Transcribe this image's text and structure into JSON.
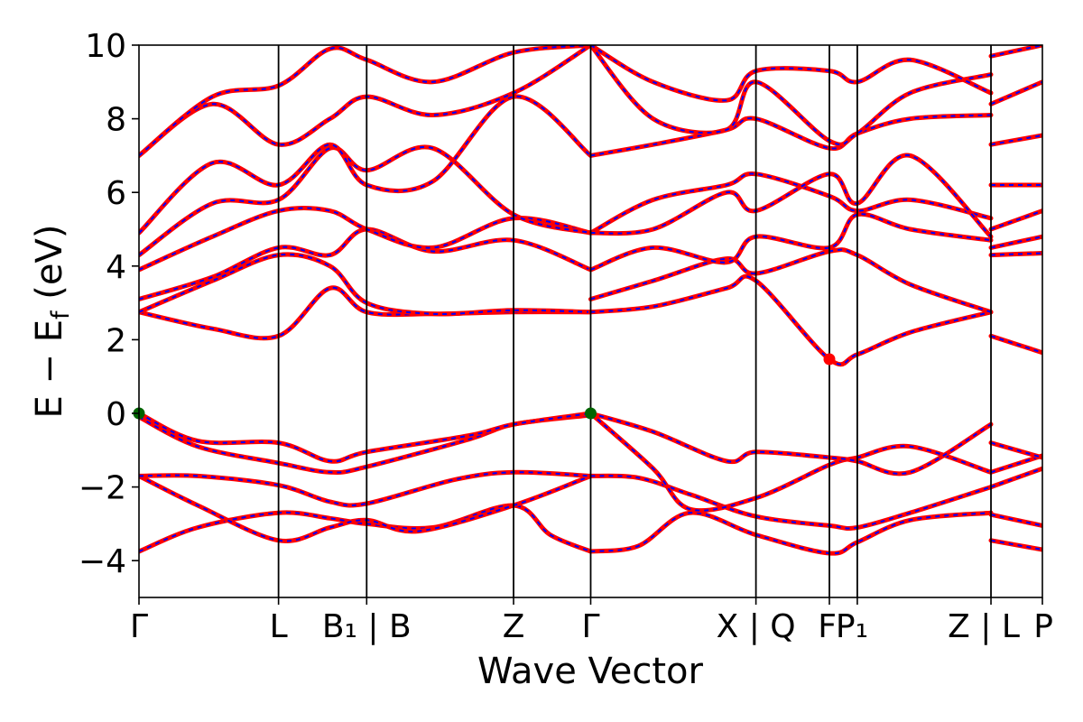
{
  "chart_data": {
    "type": "line",
    "xlabel": "Wave Vector",
    "ylabel": "E − E_f (eV)",
    "ylabel_main": "E  −  E",
    "ylabel_sub": "f",
    "ylabel_tail": " (eV)",
    "ylim": [
      -5,
      10
    ],
    "xlim": [
      0,
      12.3
    ],
    "grid": false,
    "legend": "none",
    "yticks": [
      -4,
      -2,
      0,
      2,
      4,
      6,
      8,
      10
    ],
    "ytick_labels": [
      "−4",
      "−2",
      "0",
      "2",
      "4",
      "6",
      "8",
      "10"
    ],
    "kpoints": [
      {
        "x": 0.0,
        "label": "Γ"
      },
      {
        "x": 1.9,
        "label": "L"
      },
      {
        "x": 3.1,
        "label": "B₁ | B"
      },
      {
        "x": 5.1,
        "label": "Z"
      },
      {
        "x": 6.15,
        "label": "Γ"
      },
      {
        "x": 8.4,
        "label": "X | Q"
      },
      {
        "x": 9.4,
        "label": "F"
      },
      {
        "x": 9.78,
        "label": "P₁"
      },
      {
        "x": 11.6,
        "label": "Z | L"
      },
      {
        "x": 12.3,
        "label": "P"
      }
    ],
    "discontinuity_x": 11.6,
    "vbm_points": [
      {
        "x": 0.0,
        "y": 0.0
      },
      {
        "x": 6.15,
        "y": 0.0
      }
    ],
    "cbm_points": [
      {
        "x": 9.4,
        "y": 1.47
      }
    ],
    "colors": {
      "band_solid": "#ff0000",
      "band_dashed": "#0000ff",
      "vbm": "#006400",
      "cbm": "#ff0000",
      "axis": "#000000"
    },
    "series": [
      {
        "x": [
          0,
          0.8,
          1.9,
          2.6,
          3.1,
          4.0,
          5.1,
          5.6,
          6.15
        ],
        "y": [
          -3.75,
          -3.1,
          -2.7,
          -2.85,
          -3.0,
          -3.1,
          -2.5,
          -3.3,
          -3.75
        ]
      },
      {
        "x": [
          0,
          0.8,
          1.9,
          2.6,
          3.1,
          3.8,
          5.1,
          6.15
        ],
        "y": [
          -1.7,
          -2.5,
          -3.45,
          -3.1,
          -2.9,
          -3.2,
          -2.5,
          -1.7
        ]
      },
      {
        "x": [
          0,
          0.8,
          1.9,
          2.6,
          3.1,
          4.3,
          5.1,
          6.15
        ],
        "y": [
          -1.7,
          -1.7,
          -1.95,
          -2.4,
          -2.45,
          -1.8,
          -1.6,
          -1.7
        ]
      },
      {
        "x": [
          0,
          0.8,
          1.9,
          2.6,
          3.1,
          4.5,
          5.1,
          6.15
        ],
        "y": [
          -0.1,
          -0.9,
          -1.35,
          -1.6,
          -1.45,
          -0.7,
          -0.3,
          -0.05
        ]
      },
      {
        "x": [
          0,
          0.8,
          1.9,
          2.6,
          3.1,
          4.5,
          5.1,
          6.15
        ],
        "y": [
          0.0,
          -0.75,
          -0.8,
          -1.3,
          -1.05,
          -0.6,
          -0.3,
          0.0
        ]
      },
      {
        "x": [
          6.15,
          6.8,
          7.5,
          8.4,
          9.4,
          9.78,
          10.5,
          11.6
        ],
        "y": [
          -3.75,
          -3.6,
          -2.7,
          -3.3,
          -3.8,
          -3.5,
          -2.9,
          -2.7
        ]
      },
      {
        "x": [
          6.15,
          6.8,
          7.5,
          8.4,
          9.4,
          9.78,
          10.5,
          11.6
        ],
        "y": [
          -1.7,
          -1.75,
          -2.2,
          -2.8,
          -3.05,
          -3.1,
          -2.7,
          -2.0
        ]
      },
      {
        "x": [
          6.15,
          7.0,
          7.5,
          8.4,
          9.4,
          9.78,
          10.5,
          11.6
        ],
        "y": [
          0.0,
          -1.5,
          -2.6,
          -2.3,
          -1.4,
          -1.2,
          -0.9,
          -1.6
        ]
      },
      {
        "x": [
          6.15,
          7.0,
          8.0,
          8.4,
          9.4,
          9.78,
          10.5,
          11.6
        ],
        "y": [
          0.0,
          -0.5,
          -1.3,
          -1.05,
          -1.2,
          -1.3,
          -1.6,
          -0.3
        ]
      },
      {
        "x": [
          0,
          1.0,
          1.9,
          2.6,
          3.1,
          4.0,
          5.1,
          6.15
        ],
        "y": [
          2.75,
          2.3,
          2.1,
          3.4,
          2.75,
          2.7,
          2.75,
          2.75
        ]
      },
      {
        "x": [
          0,
          1.0,
          1.9,
          2.6,
          3.1,
          4.0,
          5.1,
          6.15
        ],
        "y": [
          2.75,
          3.6,
          4.3,
          4.0,
          3.0,
          2.7,
          2.8,
          2.75
        ]
      },
      {
        "x": [
          0,
          1.0,
          1.9,
          2.6,
          3.1,
          4.0,
          5.1,
          6.15
        ],
        "y": [
          3.1,
          3.7,
          4.5,
          4.3,
          5.0,
          4.4,
          4.7,
          3.9
        ]
      },
      {
        "x": [
          0,
          1.0,
          1.9,
          2.6,
          3.1,
          4.0,
          5.1,
          6.15
        ],
        "y": [
          3.9,
          4.8,
          5.5,
          5.5,
          5.0,
          4.5,
          5.3,
          4.9
        ]
      },
      {
        "x": [
          0,
          1.0,
          1.9,
          2.6,
          3.1,
          4.0,
          5.1,
          6.15
        ],
        "y": [
          4.3,
          5.7,
          5.8,
          7.2,
          6.6,
          7.2,
          5.4,
          4.9
        ]
      },
      {
        "x": [
          0,
          1.0,
          1.9,
          2.6,
          3.1,
          4.0,
          5.1,
          6.15
        ],
        "y": [
          4.9,
          6.8,
          6.2,
          7.3,
          6.2,
          6.3,
          8.6,
          7.0
        ]
      },
      {
        "x": [
          0,
          1.0,
          1.9,
          2.6,
          3.1,
          4.0,
          5.1,
          6.15
        ],
        "y": [
          7.0,
          8.4,
          7.3,
          8.0,
          8.6,
          8.1,
          8.7,
          10.0
        ]
      },
      {
        "x": [
          0,
          1.0,
          1.9,
          2.6,
          3.1,
          4.0,
          5.1,
          6.15
        ],
        "y": [
          7.0,
          8.6,
          8.9,
          9.9,
          9.6,
          9.0,
          9.8,
          10.0
        ]
      },
      {
        "x": [
          6.15,
          7.0,
          8.0,
          8.4,
          9.4,
          9.78,
          10.5,
          11.6
        ],
        "y": [
          2.75,
          2.9,
          3.4,
          3.6,
          1.47,
          1.6,
          2.2,
          2.75
        ]
      },
      {
        "x": [
          6.15,
          7.0,
          8.0,
          8.4,
          9.4,
          9.78,
          10.5,
          11.6
        ],
        "y": [
          3.1,
          3.6,
          4.2,
          3.8,
          4.4,
          4.3,
          3.5,
          2.75
        ]
      },
      {
        "x": [
          6.15,
          7.0,
          8.0,
          8.4,
          9.4,
          9.78,
          10.5,
          11.6
        ],
        "y": [
          3.9,
          4.5,
          4.1,
          4.8,
          4.5,
          5.4,
          5.0,
          4.7
        ]
      },
      {
        "x": [
          6.15,
          7.0,
          8.0,
          8.4,
          9.4,
          9.78,
          10.5,
          11.6
        ],
        "y": [
          4.9,
          5.8,
          6.2,
          6.5,
          5.9,
          5.5,
          5.8,
          5.3
        ]
      },
      {
        "x": [
          6.15,
          7.0,
          8.0,
          8.4,
          9.4,
          9.78,
          10.5,
          11.6
        ],
        "y": [
          4.9,
          5.0,
          6.0,
          5.5,
          6.5,
          5.7,
          7.0,
          4.8
        ]
      },
      {
        "x": [
          6.15,
          7.0,
          8.0,
          8.4,
          9.4,
          9.78,
          10.5,
          11.6
        ],
        "y": [
          7.0,
          7.3,
          7.7,
          8.0,
          7.2,
          7.6,
          8.0,
          8.1
        ]
      },
      {
        "x": [
          6.15,
          7.0,
          8.0,
          8.4,
          9.4,
          9.78,
          10.5,
          11.6
        ],
        "y": [
          10.0,
          8.0,
          7.7,
          9.0,
          7.4,
          7.6,
          8.7,
          9.2
        ]
      },
      {
        "x": [
          6.15,
          7.0,
          8.0,
          8.4,
          9.4,
          9.78,
          10.5,
          11.6
        ],
        "y": [
          10.0,
          9.0,
          8.5,
          9.3,
          9.3,
          9.0,
          9.6,
          8.7
        ]
      },
      {
        "x": [
          11.6,
          12.3
        ],
        "y": [
          -3.45,
          -3.7
        ]
      },
      {
        "x": [
          11.6,
          12.3
        ],
        "y": [
          -2.75,
          -3.05
        ]
      },
      {
        "x": [
          11.6,
          12.3
        ],
        "y": [
          -2.0,
          -1.5
        ]
      },
      {
        "x": [
          11.6,
          12.3
        ],
        "y": [
          -1.6,
          -1.15
        ]
      },
      {
        "x": [
          11.6,
          12.3
        ],
        "y": [
          -0.8,
          -1.2
        ]
      },
      {
        "x": [
          11.6,
          12.3
        ],
        "y": [
          2.1,
          1.65
        ]
      },
      {
        "x": [
          11.6,
          12.3
        ],
        "y": [
          4.3,
          4.35
        ]
      },
      {
        "x": [
          11.6,
          12.3
        ],
        "y": [
          4.5,
          4.8
        ]
      },
      {
        "x": [
          11.6,
          12.3
        ],
        "y": [
          5.0,
          5.5
        ]
      },
      {
        "x": [
          11.6,
          12.3
        ],
        "y": [
          6.2,
          6.2
        ]
      },
      {
        "x": [
          11.6,
          12.3
        ],
        "y": [
          7.3,
          7.55
        ]
      },
      {
        "x": [
          11.6,
          12.3
        ],
        "y": [
          8.4,
          9.0
        ]
      },
      {
        "x": [
          11.6,
          12.3
        ],
        "y": [
          9.7,
          10.0
        ]
      }
    ]
  }
}
